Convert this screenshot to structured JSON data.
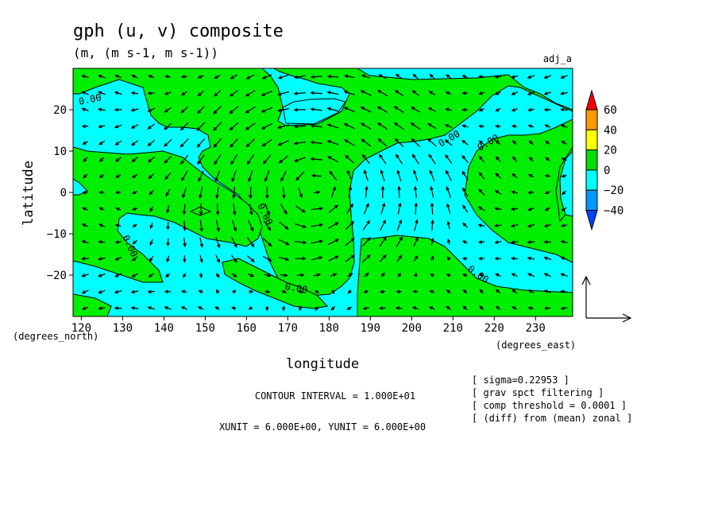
{
  "chart_data": {
    "type": "contour",
    "title": "gph (u, v) composite",
    "subtitle": "(m, (m s-1, m s-1))",
    "run_label": "adj_a",
    "xlabel": "longitude",
    "ylabel": "latitude",
    "x_units": "(degrees_east)",
    "y_units": "(degrees_north)",
    "xlim": [
      118,
      239
    ],
    "ylim": [
      -30,
      30
    ],
    "x_ticks": [
      120,
      130,
      140,
      150,
      160,
      170,
      180,
      190,
      200,
      210,
      220,
      230
    ],
    "y_ticks": [
      -20,
      -10,
      0,
      10,
      20
    ],
    "x_tick_labels": [
      "120",
      "130",
      "140",
      "150",
      "160",
      "170",
      "180",
      "190",
      "200",
      "210",
      "220",
      "230"
    ],
    "y_tick_labels": [
      "−20",
      "−10",
      "0",
      "10",
      "20"
    ],
    "contour_labels": [
      "0.00",
      "0.00",
      "0.00",
      "0.00",
      "0.00",
      "0.00",
      "0.00"
    ],
    "colorbar": {
      "levels": [
        60,
        40,
        20,
        0,
        -20,
        -40
      ],
      "labels": [
        "60",
        "40",
        "20",
        "0",
        "−20",
        "−40"
      ],
      "colors": [
        "#ff0000",
        "#ff9900",
        "#ffff00",
        "#00dd00",
        "#00ffff",
        "#0099ff",
        "#0044ff"
      ]
    },
    "fill_colors": {
      "positive": "#00ee00",
      "negative": "#00ffff"
    },
    "contour_interval": "CONTOUR INTERVAL = 1.000E+01",
    "vector_units": "XUNIT = 6.000E+00, YUNIT = 6.000E+00",
    "notes": [
      "[ sigma=0.22953 ]",
      "[ grav spct filtering ]",
      "[ comp threshold = 0.0001 ]",
      "[ (diff) from (mean) zonal ]"
    ],
    "grid": false
  }
}
